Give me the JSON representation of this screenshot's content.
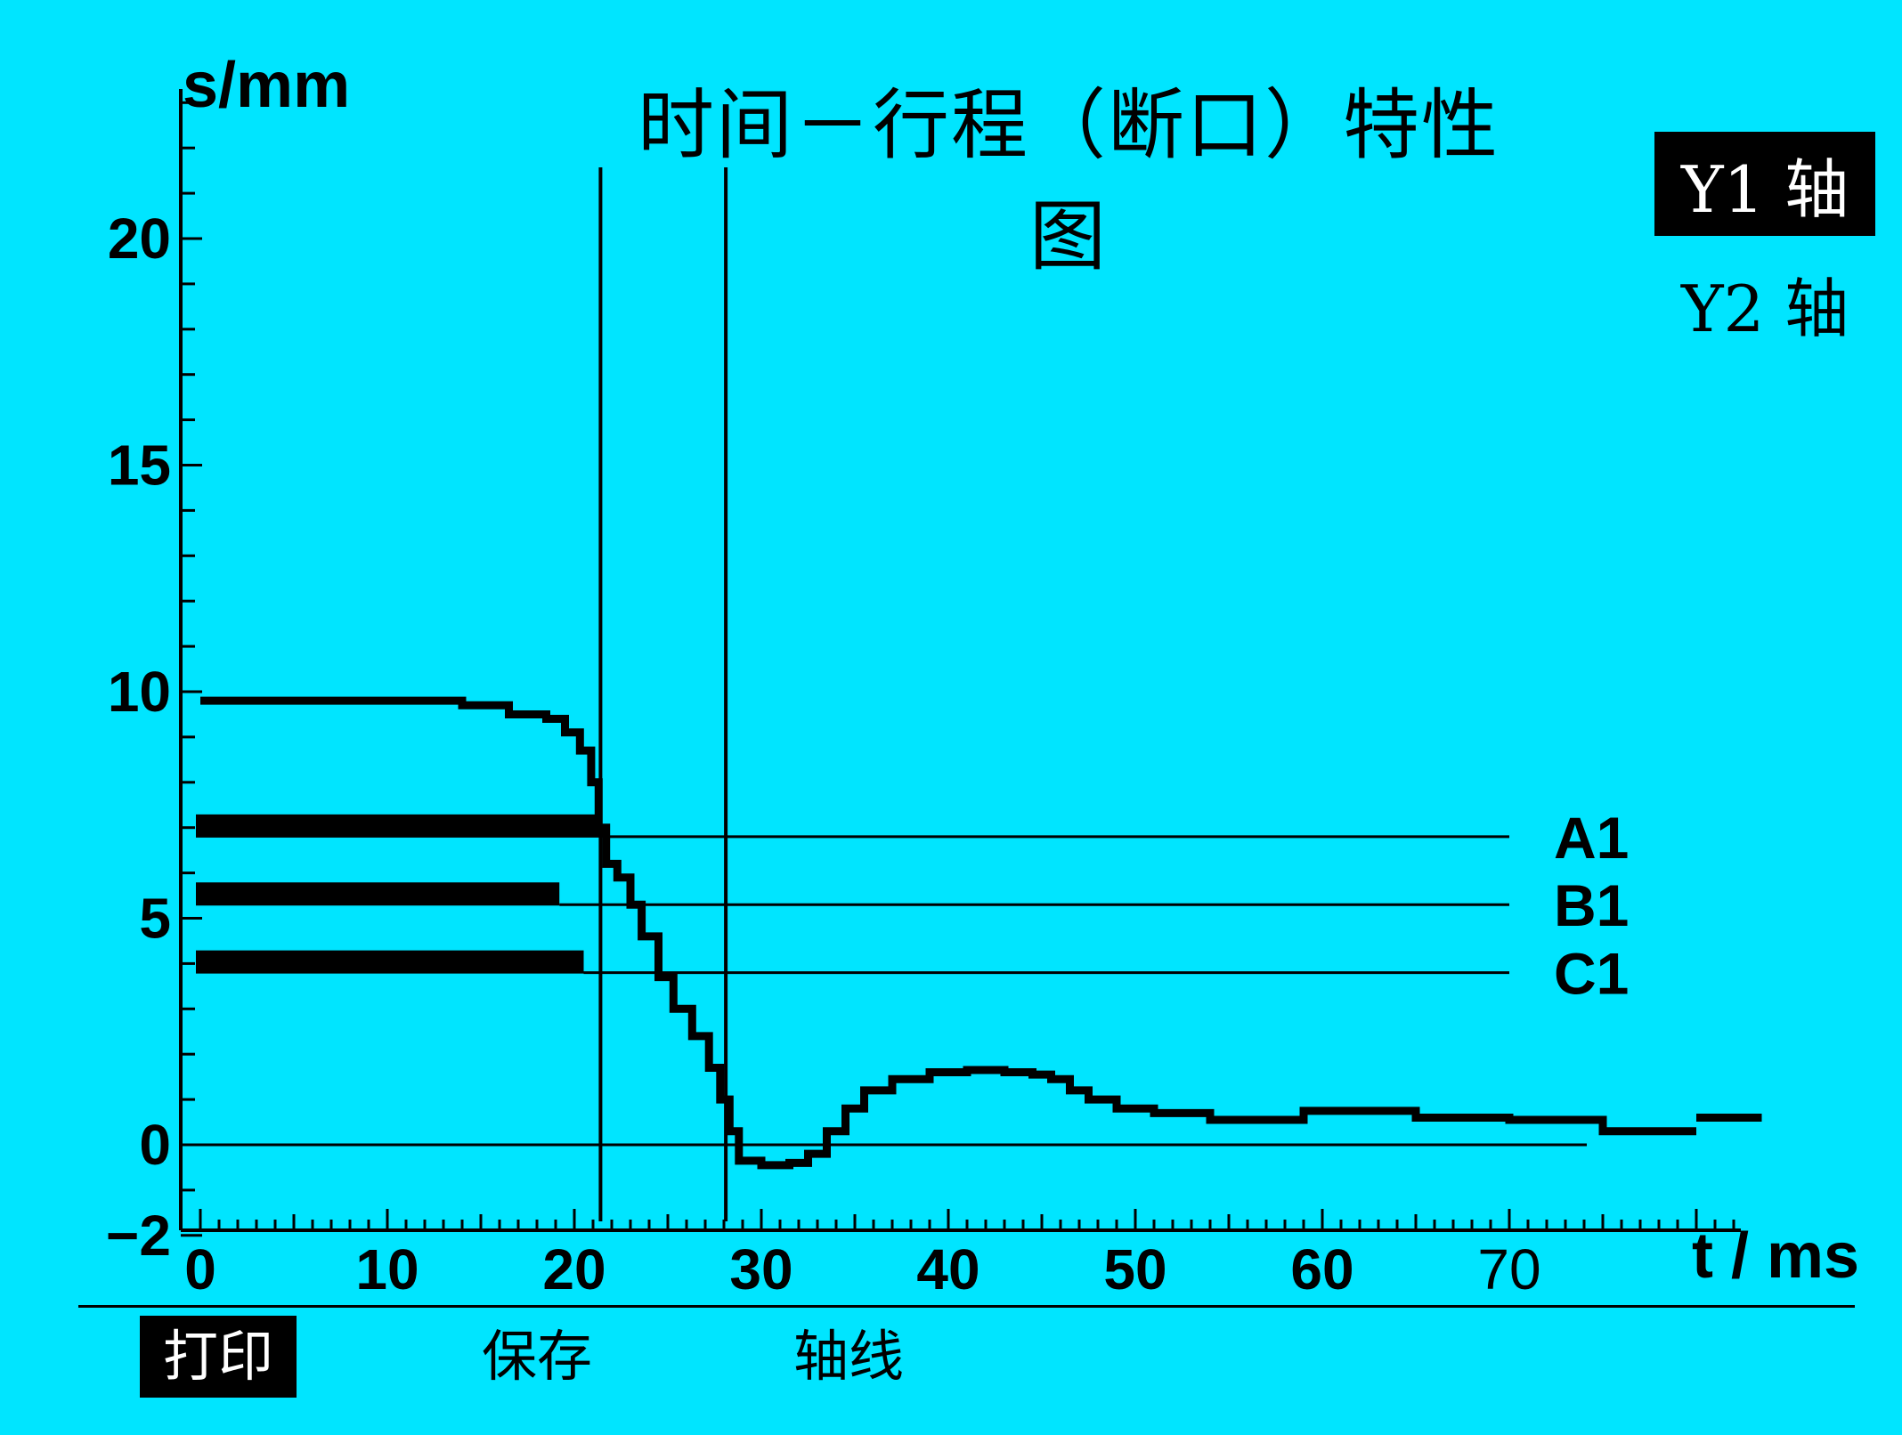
{
  "chart_data": {
    "type": "line",
    "title": "时间－行程（断口）特性图",
    "ylabel": "s/mm",
    "xlabel": "t / ms",
    "xlim": [
      -1,
      82
    ],
    "ylim": [
      -2,
      23
    ],
    "x_ticks": [
      "0",
      "10",
      "20",
      "30",
      "40",
      "50",
      "60",
      "70"
    ],
    "x_tick_values": [
      0,
      10,
      20,
      30,
      40,
      50,
      60,
      70
    ],
    "y_ticks": [
      "-2",
      "0",
      "5",
      "10",
      "15",
      "20"
    ],
    "y_tick_values": [
      -2,
      0,
      5,
      10,
      15,
      20
    ],
    "series": [
      {
        "values": [
          [
            0,
            9.8
          ],
          [
            13.5,
            9.8
          ],
          [
            14,
            9.7
          ],
          [
            16,
            9.7
          ],
          [
            16.5,
            9.5
          ],
          [
            18.5,
            9.4
          ],
          [
            19.5,
            9.1
          ],
          [
            20.3,
            8.7
          ],
          [
            20.9,
            8.0
          ],
          [
            21.3,
            7.0
          ],
          [
            21.7,
            6.2
          ],
          [
            22.3,
            5.9
          ],
          [
            23,
            5.3
          ],
          [
            23.6,
            4.6
          ],
          [
            24.5,
            3.7
          ],
          [
            25.3,
            3.0
          ],
          [
            26.3,
            2.4
          ],
          [
            27.2,
            1.7
          ],
          [
            27.8,
            1.0
          ],
          [
            28.3,
            0.3
          ],
          [
            28.8,
            -0.35
          ],
          [
            30,
            -0.45
          ],
          [
            31.5,
            -0.4
          ],
          [
            32.5,
            -0.2
          ],
          [
            33.5,
            0.3
          ],
          [
            34.5,
            0.8
          ],
          [
            35.5,
            1.2
          ],
          [
            37,
            1.45
          ],
          [
            39,
            1.6
          ],
          [
            41,
            1.65
          ],
          [
            43,
            1.6
          ],
          [
            44.5,
            1.55
          ],
          [
            45.5,
            1.45
          ],
          [
            46.5,
            1.2
          ],
          [
            47.5,
            1.0
          ],
          [
            49,
            0.8
          ],
          [
            51,
            0.7
          ],
          [
            54,
            0.55
          ],
          [
            57,
            0.55
          ],
          [
            59,
            0.75
          ],
          [
            63,
            0.75
          ],
          [
            65,
            0.6
          ],
          [
            70,
            0.55
          ],
          [
            75,
            0.3
          ],
          [
            80,
            0.3
          ]
        ]
      }
    ],
    "extra_segment": [
      [
        80,
        0.6
      ],
      [
        83.5,
        0.6
      ]
    ],
    "reference_lines": [
      {
        "label": "A1",
        "y": 6.8,
        "bar_end": 21.5
      },
      {
        "label": "B1",
        "y": 5.3,
        "bar_end": 19.2
      },
      {
        "label": "C1",
        "y": 3.8,
        "bar_end": 20.5
      }
    ],
    "vertical_lines": [
      21.4,
      28.1
    ],
    "grid": false
  },
  "axis_toggle": {
    "y1": "Y1 轴",
    "y2": "Y2 轴"
  },
  "menu": {
    "print": "打印",
    "save": "保存",
    "axis_line": "轴线"
  }
}
